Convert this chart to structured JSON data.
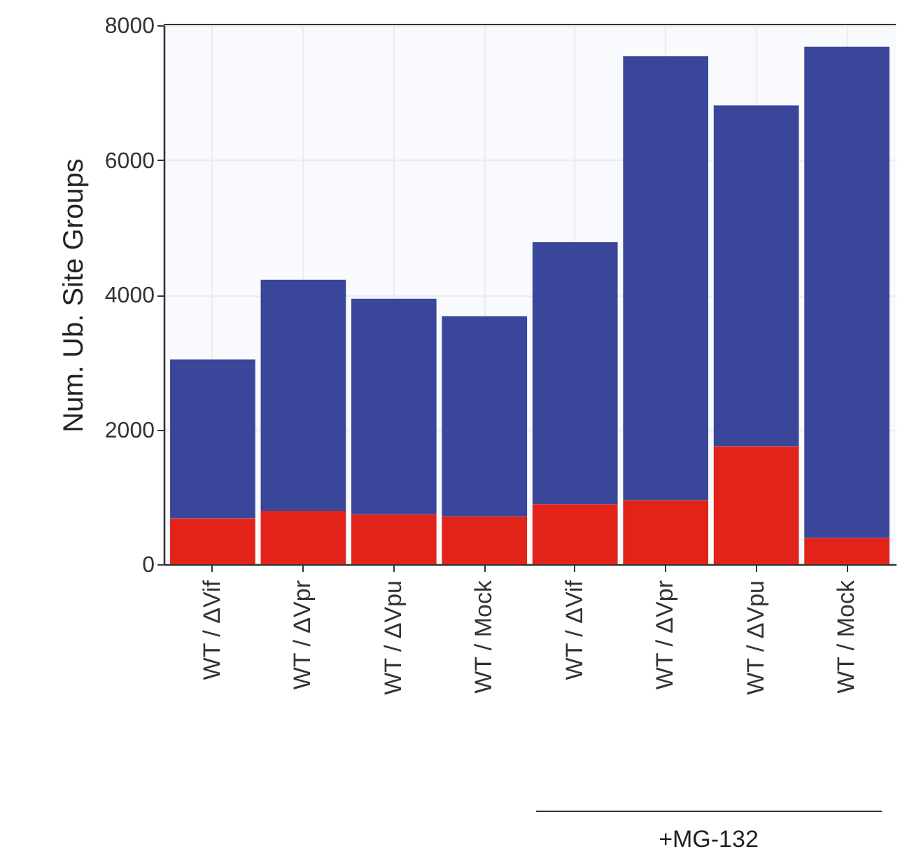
{
  "chart_data": {
    "type": "bar",
    "stacked": true,
    "ylabel": "Num. Ub. Site Groups",
    "categories": [
      "WT / ΔVif",
      "WT / ΔVpr",
      "WT / ΔVpu",
      "WT / Mock",
      "WT / ΔVif",
      "WT / ΔVpr",
      "WT / ΔVpu",
      "WT / Mock"
    ],
    "series": [
      {
        "color": "#e2231a",
        "values": [
          680,
          790,
          740,
          710,
          890,
          950,
          1750,
          390
        ]
      },
      {
        "color": "#3a4699",
        "values": [
          2360,
          3430,
          3200,
          2970,
          3890,
          6590,
          5060,
          7290
        ]
      }
    ],
    "ylim": [
      0,
      8000
    ],
    "yticks": [
      0,
      2000,
      4000,
      6000,
      8000
    ],
    "grid": true,
    "annotations": [
      "+MG-132"
    ]
  }
}
